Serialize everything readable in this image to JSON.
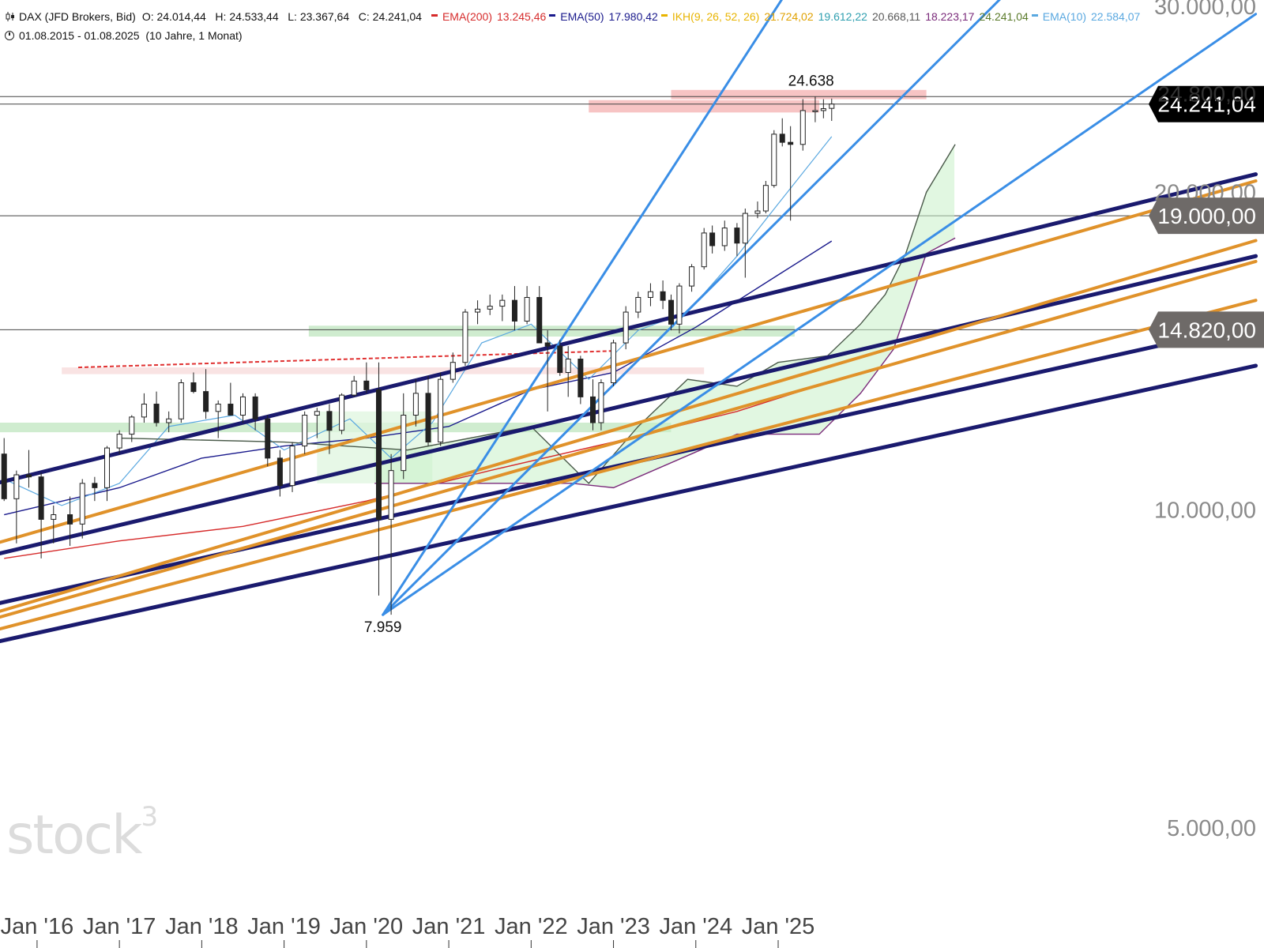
{
  "legend": {
    "instrument": "DAX (JFD Brokers, Bid)",
    "ohlc": "O: 24.014,44   H: 24.533,44   L: 23.367,64   C: 24.241,04",
    "indicators": [
      {
        "label": "EMA(200)",
        "values": [
          "13.245,46"
        ],
        "color": "#d62b2b"
      },
      {
        "label": "EMA(50)",
        "values": [
          "17.980,42"
        ],
        "color": "#1a1a8c"
      },
      {
        "label": "IKH(9, 26, 52, 26)",
        "values": [
          "21.724,02",
          "19.612,22",
          "20.668,11",
          "18.223,17",
          "24.241,04"
        ],
        "value_colors": [
          "#e0a100",
          "#2f9fb0",
          "#5a5a5a",
          "#7a2a7a",
          "#5a7a2a"
        ],
        "color": "#e8b400"
      },
      {
        "label": "EMA(10)",
        "values": [
          "22.584,07"
        ],
        "color": "#5aa8e0"
      }
    ],
    "period": "01.08.2015 - 01.08.2025  (10 Jahre, 1 Monat)"
  },
  "watermark": "stock",
  "watermark_sup": "3",
  "chart_data": {
    "type": "candlestick",
    "scale": "log",
    "ylim": [
      3900,
      30000
    ],
    "y_tick_labels": [
      {
        "value": 30000,
        "label": "30.000,00"
      },
      {
        "value": 20000,
        "label": "20.000,00"
      },
      {
        "value": 10000,
        "label": "10.000,00"
      },
      {
        "value": 5000,
        "label": "5.000,00"
      }
    ],
    "price_tags": [
      {
        "value": 24241,
        "label": "24.241,04",
        "style": "current"
      },
      {
        "value": 24800,
        "label": "24.800,00",
        "style": "partly-hidden"
      },
      {
        "value": 19000,
        "label": "19.000,00",
        "style": "level"
      },
      {
        "value": 14820,
        "label": "14.820,00",
        "style": "level"
      }
    ],
    "x_tick_labels": [
      {
        "x": 2016.0,
        "label": "Jan '16"
      },
      {
        "x": 2017.0,
        "label": "Jan '17"
      },
      {
        "x": 2018.0,
        "label": "Jan '18"
      },
      {
        "x": 2019.0,
        "label": "Jan '19"
      },
      {
        "x": 2020.0,
        "label": "Jan '20"
      },
      {
        "x": 2021.0,
        "label": "Jan '21"
      },
      {
        "x": 2022.0,
        "label": "Jan '22"
      },
      {
        "x": 2023.0,
        "label": "Jan '23"
      },
      {
        "x": 2024.0,
        "label": "Jan '24"
      },
      {
        "x": 2025.0,
        "label": "Jan '25"
      }
    ],
    "annotations": [
      {
        "label": "24.638",
        "x": 2025.4,
        "y": 24638,
        "position": "above"
      },
      {
        "label": "7.959",
        "x": 2020.2,
        "y": 7959,
        "position": "below"
      }
    ],
    "horizontal_levels": [
      24638,
      24241,
      19000,
      14820
    ],
    "zones": [
      {
        "x0": 2023.7,
        "x1": 2026.8,
        "y0": 24500,
        "y1": 25000,
        "color": "#f4b0b0"
      },
      {
        "x0": 2022.7,
        "x1": 2025.5,
        "y0": 23800,
        "y1": 24450,
        "color": "#f4b0b0"
      },
      {
        "x0": 2019.3,
        "x1": 2025.2,
        "y0": 14600,
        "y1": 14950,
        "color": "#bfe6bf"
      },
      {
        "x0": 2015.55,
        "x1": 2023.7,
        "y0": 11850,
        "y1": 12100,
        "color": "#bfe6bf"
      },
      {
        "x0": 2016.3,
        "x1": 2024.1,
        "y0": 13450,
        "y1": 13650,
        "color": "#f7dada"
      },
      {
        "x0": 2019.4,
        "x1": 2020.8,
        "y0": 10600,
        "y1": 12400,
        "color": "#dff5df"
      }
    ],
    "dashed_resistance": {
      "x": [
        2016.5,
        2023.0
      ],
      "y": [
        13650,
        14150
      ],
      "color": "#e03030"
    },
    "trendlines": [
      {
        "color": "#1a1a6e",
        "x": [
          2015.5,
          2030.8
        ],
        "y": [
          10600,
          20800
        ]
      },
      {
        "color": "#1a1a6e",
        "x": [
          2015.5,
          2030.8
        ],
        "y": [
          9080,
          17400
        ]
      },
      {
        "color": "#1a1a6e",
        "x": [
          2015.5,
          2030.8
        ],
        "y": [
          8150,
          15000
        ]
      },
      {
        "color": "#1a1a6e",
        "x": [
          2015.5,
          2030.8
        ],
        "y": [
          7500,
          13700
        ]
      },
      {
        "color": "#e0922a",
        "x": [
          2015.5,
          2030.8
        ],
        "y": [
          9300,
          20500
        ]
      },
      {
        "color": "#e0922a",
        "x": [
          2015.5,
          2030.8
        ],
        "y": [
          8000,
          18000
        ]
      },
      {
        "color": "#e0922a",
        "x": [
          2015.5,
          2030.8
        ],
        "y": [
          7700,
          15800
        ]
      },
      {
        "color": "#e0922a",
        "x": [
          2015.5,
          2030.8
        ],
        "y": [
          7900,
          17200
        ]
      },
      {
        "color": "#3a8ee6",
        "x": [
          2020.2,
          2025.05
        ],
        "y": [
          7959,
          30500
        ]
      },
      {
        "color": "#3a8ee6",
        "x": [
          2020.2,
          2030.8
        ],
        "y": [
          7959,
          29500
        ]
      },
      {
        "color": "#3a8ee6",
        "x": [
          2020.2,
          2027.7
        ],
        "y": [
          7959,
          30500
        ]
      }
    ],
    "candles": [
      {
        "x": 2015.6,
        "o": 11300,
        "h": 11700,
        "l": 10200,
        "c": 10250
      },
      {
        "x": 2015.75,
        "o": 10250,
        "h": 10900,
        "l": 9300,
        "c": 10800
      },
      {
        "x": 2015.9,
        "o": 10800,
        "h": 11400,
        "l": 10500,
        "c": 10750
      },
      {
        "x": 2016.05,
        "o": 10750,
        "h": 10850,
        "l": 9000,
        "c": 9800
      },
      {
        "x": 2016.2,
        "o": 9800,
        "h": 10100,
        "l": 9300,
        "c": 9900
      },
      {
        "x": 2016.4,
        "o": 9900,
        "h": 10300,
        "l": 9250,
        "c": 9700
      },
      {
        "x": 2016.55,
        "o": 9700,
        "h": 10700,
        "l": 9400,
        "c": 10600
      },
      {
        "x": 2016.7,
        "o": 10600,
        "h": 10750,
        "l": 10200,
        "c": 10500
      },
      {
        "x": 2016.85,
        "o": 10500,
        "h": 11500,
        "l": 10200,
        "c": 11450
      },
      {
        "x": 2017.0,
        "o": 11450,
        "h": 11900,
        "l": 11300,
        "c": 11800
      },
      {
        "x": 2017.15,
        "o": 11800,
        "h": 12300,
        "l": 11600,
        "c": 12250
      },
      {
        "x": 2017.3,
        "o": 12250,
        "h": 12900,
        "l": 12100,
        "c": 12600
      },
      {
        "x": 2017.45,
        "o": 12600,
        "h": 12950,
        "l": 12000,
        "c": 12100
      },
      {
        "x": 2017.6,
        "o": 12100,
        "h": 12400,
        "l": 11850,
        "c": 12200
      },
      {
        "x": 2017.75,
        "o": 12200,
        "h": 13300,
        "l": 12100,
        "c": 13200
      },
      {
        "x": 2017.9,
        "o": 13200,
        "h": 13500,
        "l": 12900,
        "c": 12950
      },
      {
        "x": 2018.05,
        "o": 12950,
        "h": 13600,
        "l": 12200,
        "c": 12400
      },
      {
        "x": 2018.2,
        "o": 12400,
        "h": 12700,
        "l": 11700,
        "c": 12600
      },
      {
        "x": 2018.35,
        "o": 12600,
        "h": 13200,
        "l": 12400,
        "c": 12300
      },
      {
        "x": 2018.5,
        "o": 12300,
        "h": 12900,
        "l": 12100,
        "c": 12800
      },
      {
        "x": 2018.65,
        "o": 12800,
        "h": 12900,
        "l": 11900,
        "c": 12200
      },
      {
        "x": 2018.8,
        "o": 12200,
        "h": 12300,
        "l": 11000,
        "c": 11200
      },
      {
        "x": 2018.95,
        "o": 11200,
        "h": 11400,
        "l": 10300,
        "c": 10550
      },
      {
        "x": 2019.1,
        "o": 10550,
        "h": 11600,
        "l": 10400,
        "c": 11500
      },
      {
        "x": 2019.25,
        "o": 11500,
        "h": 12400,
        "l": 11300,
        "c": 12300
      },
      {
        "x": 2019.4,
        "o": 12300,
        "h": 12500,
        "l": 11700,
        "c": 12400
      },
      {
        "x": 2019.55,
        "o": 12400,
        "h": 12600,
        "l": 11300,
        "c": 11900
      },
      {
        "x": 2019.7,
        "o": 11900,
        "h": 12900,
        "l": 11800,
        "c": 12850
      },
      {
        "x": 2019.85,
        "o": 12850,
        "h": 13400,
        "l": 12800,
        "c": 13250
      },
      {
        "x": 2020.0,
        "o": 13250,
        "h": 13800,
        "l": 12900,
        "c": 13000
      },
      {
        "x": 2020.15,
        "o": 13000,
        "h": 13800,
        "l": 8300,
        "c": 9800
      },
      {
        "x": 2020.3,
        "o": 9800,
        "h": 11300,
        "l": 7959,
        "c": 10900
      },
      {
        "x": 2020.45,
        "o": 10900,
        "h": 12900,
        "l": 10700,
        "c": 12300
      },
      {
        "x": 2020.6,
        "o": 12300,
        "h": 13300,
        "l": 12000,
        "c": 12900
      },
      {
        "x": 2020.75,
        "o": 12900,
        "h": 13400,
        "l": 11500,
        "c": 11600
      },
      {
        "x": 2020.9,
        "o": 11600,
        "h": 13500,
        "l": 11500,
        "c": 13300
      },
      {
        "x": 2021.05,
        "o": 13300,
        "h": 14100,
        "l": 13200,
        "c": 13800
      },
      {
        "x": 2021.2,
        "o": 13800,
        "h": 15500,
        "l": 13700,
        "c": 15400
      },
      {
        "x": 2021.35,
        "o": 15400,
        "h": 15800,
        "l": 15000,
        "c": 15500
      },
      {
        "x": 2021.5,
        "o": 15500,
        "h": 16000,
        "l": 15300,
        "c": 15600
      },
      {
        "x": 2021.65,
        "o": 15600,
        "h": 16000,
        "l": 15100,
        "c": 15800
      },
      {
        "x": 2021.8,
        "o": 15800,
        "h": 16300,
        "l": 14800,
        "c": 15100
      },
      {
        "x": 2021.95,
        "o": 15100,
        "h": 16300,
        "l": 15000,
        "c": 15900
      },
      {
        "x": 2022.1,
        "o": 15900,
        "h": 16300,
        "l": 14400,
        "c": 14400
      },
      {
        "x": 2022.2,
        "o": 14400,
        "h": 14800,
        "l": 12400,
        "c": 14300
      },
      {
        "x": 2022.35,
        "o": 14300,
        "h": 14500,
        "l": 13400,
        "c": 13500
      },
      {
        "x": 2022.45,
        "o": 13500,
        "h": 14300,
        "l": 12800,
        "c": 13900
      },
      {
        "x": 2022.6,
        "o": 13900,
        "h": 14000,
        "l": 12600,
        "c": 12800
      },
      {
        "x": 2022.75,
        "o": 12800,
        "h": 13300,
        "l": 11900,
        "c": 12100
      },
      {
        "x": 2022.85,
        "o": 12100,
        "h": 13300,
        "l": 11900,
        "c": 13200
      },
      {
        "x": 2023.0,
        "o": 13200,
        "h": 14500,
        "l": 13100,
        "c": 14400
      },
      {
        "x": 2023.15,
        "o": 14400,
        "h": 15600,
        "l": 14200,
        "c": 15400
      },
      {
        "x": 2023.3,
        "o": 15400,
        "h": 16100,
        "l": 15200,
        "c": 15900
      },
      {
        "x": 2023.45,
        "o": 15900,
        "h": 16400,
        "l": 15600,
        "c": 16100
      },
      {
        "x": 2023.6,
        "o": 16100,
        "h": 16500,
        "l": 15500,
        "c": 15800
      },
      {
        "x": 2023.7,
        "o": 15800,
        "h": 16000,
        "l": 14800,
        "c": 15000
      },
      {
        "x": 2023.8,
        "o": 15000,
        "h": 16400,
        "l": 14700,
        "c": 16300
      },
      {
        "x": 2023.95,
        "o": 16300,
        "h": 17100,
        "l": 16100,
        "c": 17000
      },
      {
        "x": 2024.1,
        "o": 17000,
        "h": 18500,
        "l": 16900,
        "c": 18300
      },
      {
        "x": 2024.2,
        "o": 18300,
        "h": 18600,
        "l": 17500,
        "c": 17800
      },
      {
        "x": 2024.35,
        "o": 17800,
        "h": 18800,
        "l": 17600,
        "c": 18500
      },
      {
        "x": 2024.5,
        "o": 18500,
        "h": 18700,
        "l": 17400,
        "c": 17900
      },
      {
        "x": 2024.6,
        "o": 17900,
        "h": 19300,
        "l": 16600,
        "c": 19100
      },
      {
        "x": 2024.75,
        "o": 19100,
        "h": 19600,
        "l": 18900,
        "c": 19200
      },
      {
        "x": 2024.85,
        "o": 19200,
        "h": 20500,
        "l": 19100,
        "c": 20300
      },
      {
        "x": 2024.95,
        "o": 20300,
        "h": 22900,
        "l": 20200,
        "c": 22700
      },
      {
        "x": 2025.05,
        "o": 22700,
        "h": 23500,
        "l": 22100,
        "c": 22300
      },
      {
        "x": 2025.15,
        "o": 22300,
        "h": 23100,
        "l": 18800,
        "c": 22200
      },
      {
        "x": 2025.3,
        "o": 22200,
        "h": 24500,
        "l": 21900,
        "c": 23900
      },
      {
        "x": 2025.45,
        "o": 23900,
        "h": 24638,
        "l": 23300,
        "c": 23900
      },
      {
        "x": 2025.55,
        "o": 23900,
        "h": 24500,
        "l": 23500,
        "c": 24000
      },
      {
        "x": 2025.65,
        "o": 24014,
        "h": 24533,
        "l": 23367,
        "c": 24241
      }
    ],
    "series": [
      {
        "name": "EMA(200)",
        "color": "#d62b2b",
        "x": [
          2015.6,
          2017.0,
          2018.5,
          2020.0,
          2021.5,
          2023.0,
          2024.5,
          2025.65
        ],
        "y": [
          9000,
          9350,
          9650,
          10200,
          10900,
          11600,
          12400,
          13245
        ]
      },
      {
        "name": "EMA(50)",
        "color": "#1a1a8c",
        "x": [
          2015.6,
          2017.0,
          2018.0,
          2019.0,
          2020.0,
          2021.0,
          2022.0,
          2023.0,
          2024.0,
          2025.0,
          2025.65
        ],
        "y": [
          9900,
          10500,
          11200,
          11500,
          11700,
          12000,
          13000,
          13500,
          14900,
          16700,
          17980
        ]
      },
      {
        "name": "EMA(10)",
        "color": "#5aa8e0",
        "x": [
          2015.6,
          2016.3,
          2017.0,
          2017.6,
          2018.4,
          2019.0,
          2019.8,
          2020.3,
          2020.8,
          2021.4,
          2022.0,
          2022.7,
          2023.3,
          2023.9,
          2024.5,
          2025.0,
          2025.65
        ],
        "y": [
          10700,
          10100,
          10600,
          12000,
          12300,
          11400,
          12200,
          11200,
          12100,
          14400,
          15000,
          13300,
          14800,
          15400,
          17400,
          19500,
          22584
        ]
      },
      {
        "name": "IKH Senkou A",
        "color": "#4a5a4a",
        "x": [
          2017.0,
          2019.0,
          2020.5,
          2022.0,
          2022.7,
          2023.3,
          2023.9,
          2024.5,
          2025.0,
          2025.6,
          2026.0,
          2026.3,
          2026.55,
          2026.8,
          2027.15
        ],
        "y": [
          11700,
          11600,
          11400,
          12000,
          10600,
          12000,
          13300,
          13100,
          13800,
          14000,
          15000,
          16000,
          17500,
          20000,
          22200
        ]
      },
      {
        "name": "IKH Senkou B",
        "color": "#7a2a7a",
        "x": [
          2020.1,
          2021.0,
          2022.5,
          2023.0,
          2024.5,
          2025.5,
          2026.0,
          2026.4,
          2026.8,
          2027.15
        ],
        "y": [
          10600,
          10600,
          10600,
          10500,
          11800,
          11800,
          12900,
          14200,
          17500,
          18100
        ]
      }
    ]
  }
}
